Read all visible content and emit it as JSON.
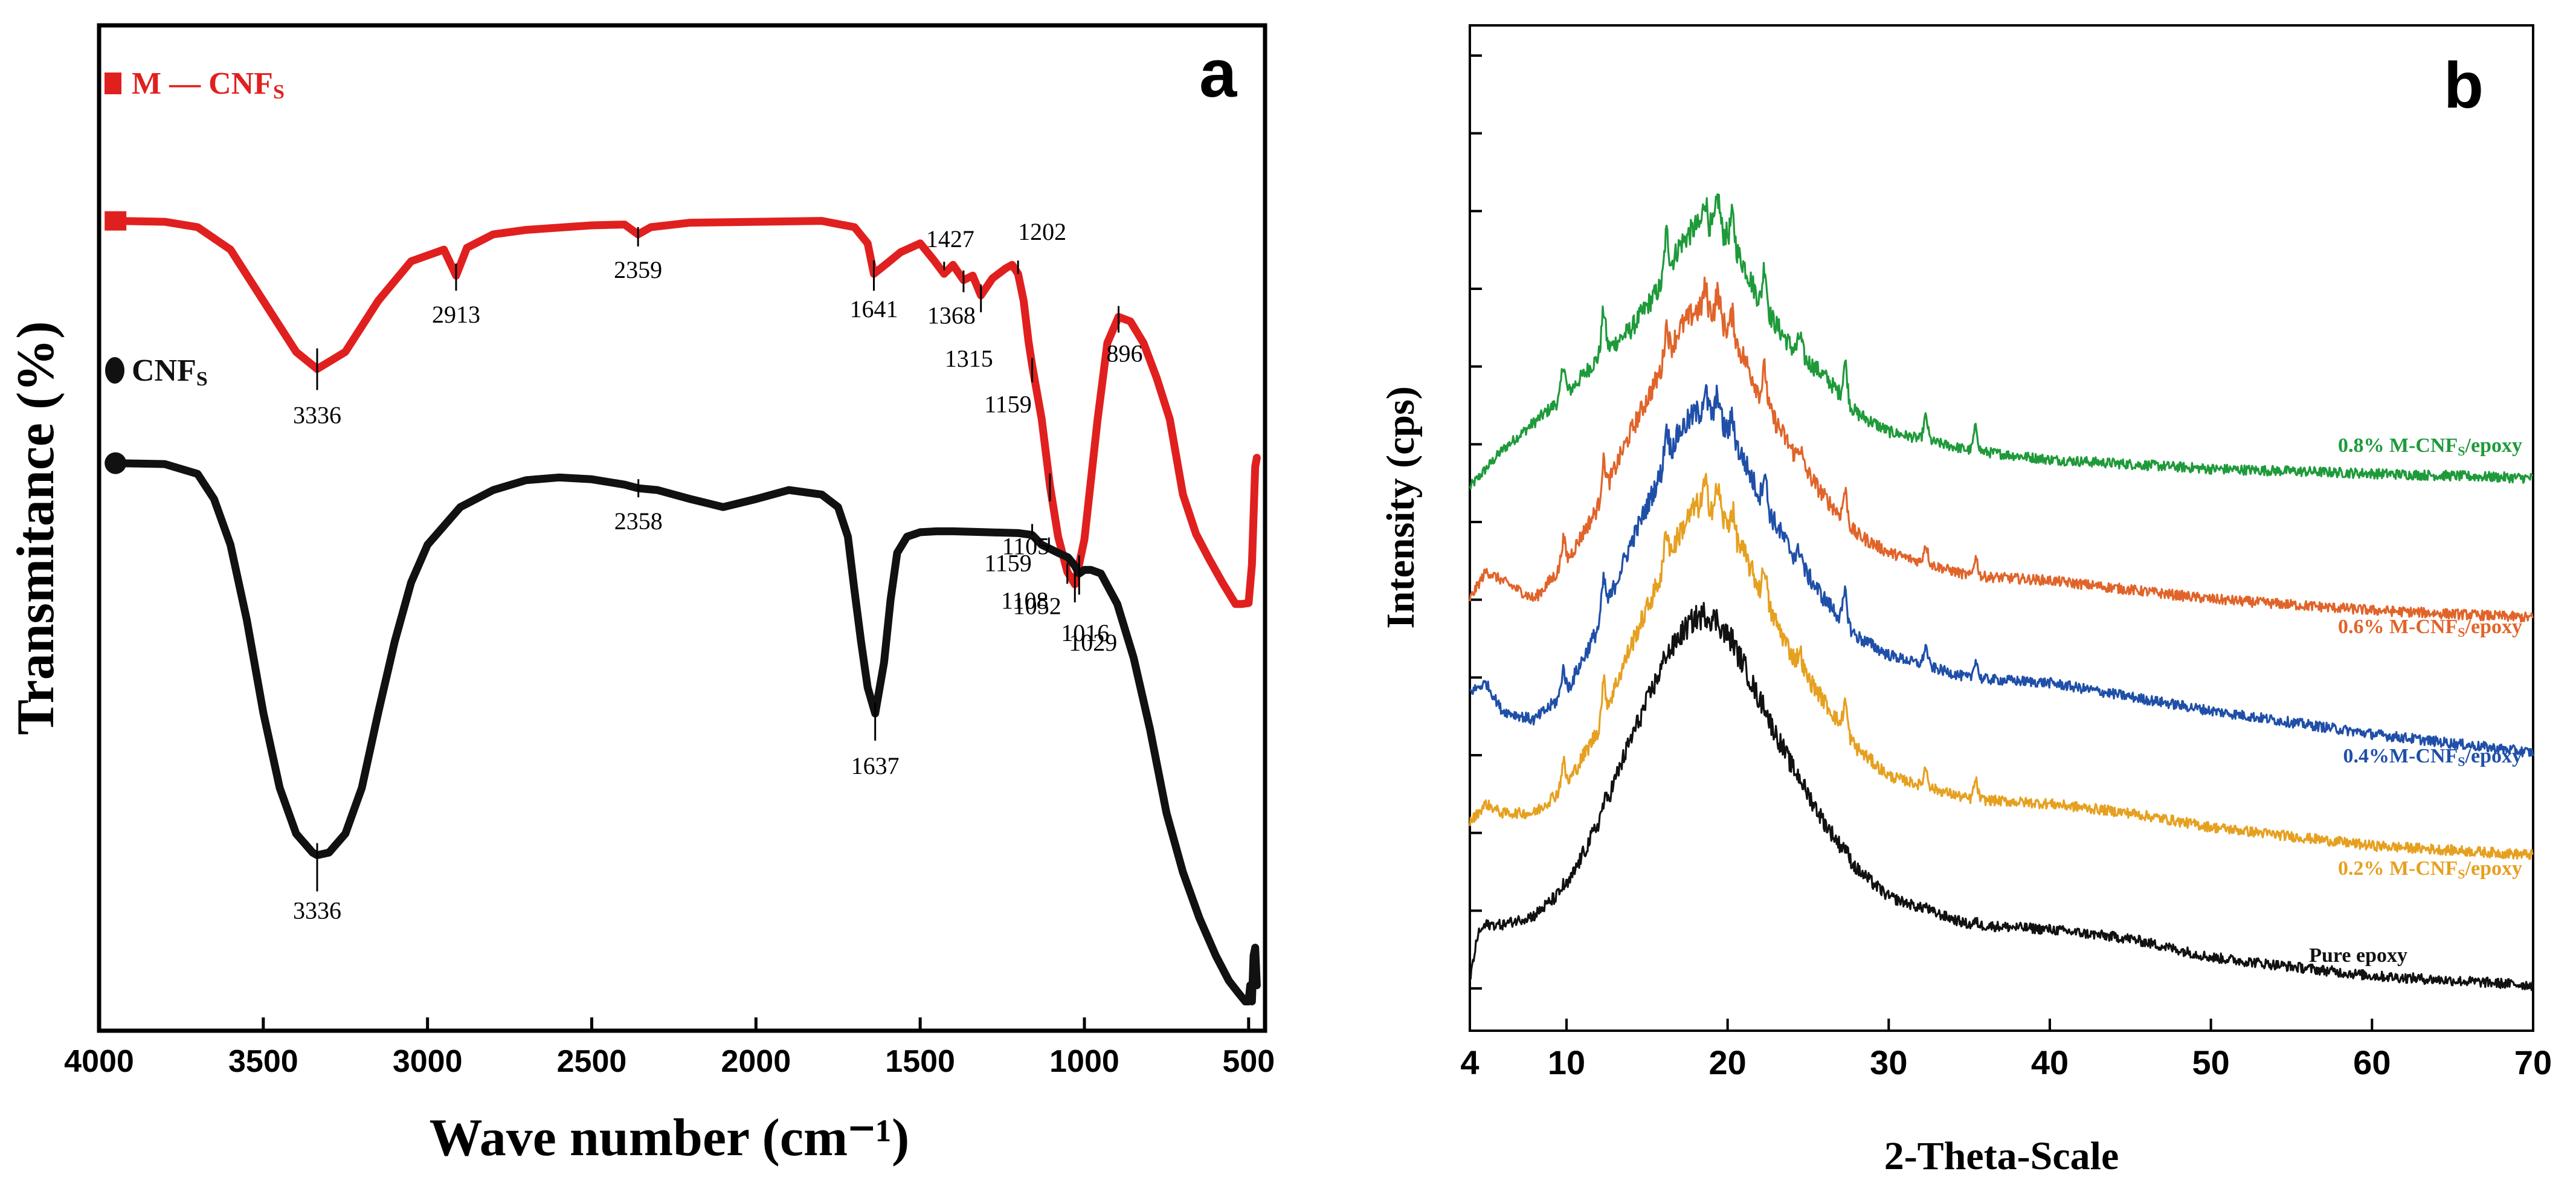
{
  "chart_data": [
    {
      "panel": "a",
      "type": "line",
      "title": "",
      "xlabel": "Wave number (cm⁻¹)",
      "ylabel": "Transmitance (%)",
      "xlim": [
        4000,
        450
      ],
      "x_reversed": true,
      "xticks": [
        4000,
        3500,
        3000,
        2500,
        2000,
        1500,
        1000,
        500
      ],
      "ylim": [
        0,
        100
      ],
      "yticks": false,
      "legend_position": "top-left",
      "series": [
        {
          "name": "M—CNFs",
          "legend_label": "M — CNF",
          "legend_sub": "S",
          "color": "#e0201f",
          "marker": "square",
          "x": [
            3950,
            3800,
            3700,
            3600,
            3500,
            3400,
            3336,
            3250,
            3150,
            3050,
            2950,
            2913,
            2880,
            2800,
            2700,
            2500,
            2400,
            2359,
            2320,
            2200,
            2000,
            1800,
            1700,
            1660,
            1641,
            1600,
            1560,
            1500,
            1460,
            1427,
            1400,
            1368,
            1340,
            1315,
            1280,
            1240,
            1220,
            1202,
            1185,
            1170,
            1159,
            1130,
            1105,
            1080,
            1052,
            1029,
            1000,
            960,
            930,
            896,
            860,
            820,
            780,
            740,
            700,
            660,
            620,
            580,
            540,
            520,
            500,
            490,
            480,
            475
          ],
          "y": [
            87.5,
            87.4,
            86.8,
            84.3,
            78.6,
            72.9,
            71.0,
            72.9,
            78.6,
            83.0,
            84.3,
            81.4,
            84.5,
            86.0,
            86.5,
            87.0,
            87.1,
            86.0,
            86.8,
            87.3,
            87.4,
            87.5,
            86.8,
            85.0,
            81.6,
            82.8,
            84.0,
            85.0,
            83.2,
            81.6,
            82.6,
            80.9,
            81.4,
            79.2,
            81.1,
            82.2,
            82.6,
            81.6,
            78.6,
            74.0,
            71.4,
            65.4,
            58.0,
            52.3,
            48.4,
            47.0,
            52.0,
            65.3,
            73.9,
            76.8,
            76.3,
            73.9,
            70.0,
            65.4,
            57.0,
            52.6,
            49.8,
            47.2,
            44.8,
            44.8,
            44.9,
            49.2,
            60.1,
            61.1
          ]
        },
        {
          "name": "CNFs",
          "legend_label": "CNF",
          "legend_sub": "S",
          "color": "#111111",
          "marker": "circle",
          "x": [
            3950,
            3800,
            3700,
            3650,
            3600,
            3550,
            3500,
            3450,
            3400,
            3350,
            3336,
            3300,
            3250,
            3200,
            3150,
            3100,
            3050,
            3000,
            2900,
            2800,
            2700,
            2600,
            2500,
            2400,
            2358,
            2300,
            2200,
            2100,
            2000,
            1900,
            1800,
            1750,
            1720,
            1700,
            1680,
            1660,
            1637,
            1610,
            1590,
            1570,
            1540,
            1500,
            1450,
            1400,
            1300,
            1200,
            1159,
            1130,
            1108,
            1080,
            1050,
            1030,
            1016,
            1000,
            980,
            950,
            900,
            850,
            800,
            750,
            700,
            650,
            600,
            560,
            530,
            510,
            500,
            495,
            490,
            485,
            480,
            475
          ],
          "y": [
            60.5,
            60.4,
            59.3,
            56.5,
            51.4,
            43.0,
            32.7,
            24.3,
            19.2,
            17.1,
            16.8,
            17.1,
            19.2,
            24.3,
            32.7,
            40.6,
            47.2,
            51.4,
            55.6,
            57.5,
            58.6,
            58.9,
            58.7,
            58.1,
            57.7,
            57.5,
            56.5,
            55.6,
            56.5,
            57.5,
            57.0,
            55.6,
            52.3,
            46.3,
            40.6,
            35.5,
            32.6,
            38.3,
            45.3,
            50.5,
            52.3,
            52.8,
            52.9,
            52.9,
            52.8,
            52.7,
            52.5,
            51.4,
            51.0,
            50.5,
            50.0,
            49.1,
            48.2,
            48.6,
            48.6,
            48.2,
            44.8,
            38.8,
            30.8,
            21.5,
            14.9,
            9.8,
            5.6,
            2.8,
            1.4,
            0.5,
            0.5,
            2.3,
            0.5,
            5.6,
            6.5,
            2.3
          ]
        }
      ],
      "annotations": [
        {
          "series": "M—CNFs",
          "label": "3336",
          "x": 3336
        },
        {
          "series": "M—CNFs",
          "label": "2913",
          "x": 2913
        },
        {
          "series": "M—CNFs",
          "label": "2359",
          "x": 2359
        },
        {
          "series": "M—CNFs",
          "label": "1641",
          "x": 1641
        },
        {
          "series": "M—CNFs",
          "label": "1427",
          "x": 1427
        },
        {
          "series": "M—CNFs",
          "label": "1368",
          "x": 1368
        },
        {
          "series": "M—CNFs",
          "label": "1315",
          "x": 1315
        },
        {
          "series": "M—CNFs",
          "label": "1202",
          "x": 1202
        },
        {
          "series": "M—CNFs",
          "label": "1159",
          "x": 1159
        },
        {
          "series": "M—CNFs",
          "label": "1105",
          "x": 1105
        },
        {
          "series": "M—CNFs",
          "label": "1052",
          "x": 1052
        },
        {
          "series": "M—CNFs",
          "label": "1029",
          "x": 1029
        },
        {
          "series": "M—CNFs",
          "label": "896",
          "x": 896
        },
        {
          "series": "CNFs",
          "label": "3336",
          "x": 3336
        },
        {
          "series": "CNFs",
          "label": "2358",
          "x": 2358
        },
        {
          "series": "CNFs",
          "label": "1637",
          "x": 1637
        },
        {
          "series": "CNFs",
          "label": "1159",
          "x": 1159
        },
        {
          "series": "CNFs",
          "label": "1108",
          "x": 1108
        },
        {
          "series": "CNFs",
          "label": "1016",
          "x": 1016
        }
      ]
    },
    {
      "panel": "b",
      "type": "line",
      "title": "",
      "xlabel": "2-Theta-Scale",
      "ylabel": "Intensity (cps)",
      "xlim": [
        4,
        70
      ],
      "xticks": [
        4,
        10,
        20,
        30,
        40,
        50,
        60,
        70
      ],
      "ylim": [
        0,
        100
      ],
      "yticks": false,
      "noise": true,
      "series": [
        {
          "name": "0.8% M-CNFs/epoxy",
          "label_text": "0.8% M-CNF",
          "label_sub": "S",
          "label_suffix": "/epoxy",
          "color": "#1e9a3a",
          "x": [
            4,
            6,
            8,
            10,
            12,
            14,
            16,
            17,
            18,
            19,
            20,
            21,
            22,
            24,
            26,
            28,
            30,
            35,
            40,
            45,
            50,
            60,
            70
          ],
          "y": [
            58,
            62,
            65,
            68,
            72,
            75,
            80,
            84,
            86,
            86,
            85,
            82,
            78,
            73,
            70,
            66,
            64,
            62,
            61,
            60.5,
            60,
            59.5,
            59
          ]
        },
        {
          "name": "0.6% M-CNFs/epoxy",
          "label_text": "0.6% M-CNF",
          "label_sub": "S",
          "label_suffix": "/epoxy",
          "color": "#e0642a",
          "x": [
            4,
            5,
            6,
            8,
            10,
            12,
            14,
            16,
            17,
            18,
            19,
            20,
            21,
            22,
            24,
            26,
            28,
            30,
            35,
            40,
            45,
            50,
            60,
            70
          ],
          "y": [
            46,
            49,
            48,
            46,
            50,
            56,
            64,
            71,
            75,
            77,
            77,
            75,
            72,
            68,
            62,
            57,
            53,
            51,
            48.5,
            48,
            47,
            46,
            44.8,
            44
          ]
        },
        {
          "name": "0.4%M-CNFs/epoxy",
          "label_text": "0.4%M-CNF",
          "label_sub": "S",
          "label_suffix": "/epoxy",
          "color": "#1f4fa8",
          "x": [
            4,
            5,
            6,
            8,
            10,
            12,
            14,
            16,
            17,
            18,
            19,
            20,
            21,
            22,
            24,
            26,
            28,
            30,
            35,
            40,
            45,
            50,
            60,
            70
          ],
          "y": [
            36,
            37,
            34,
            33,
            36,
            43,
            52,
            60,
            64,
            66,
            66,
            64,
            61,
            57,
            51,
            46,
            42,
            40,
            37.5,
            37,
            35.5,
            34,
            31.5,
            29.5
          ]
        },
        {
          "name": "0.2% M-CNFs/epoxy",
          "label_text": "0.2% M-CNF",
          "label_sub": "S",
          "label_suffix": "/epoxy",
          "color": "#e6a020",
          "x": [
            4,
            5,
            6,
            8,
            10,
            12,
            14,
            16,
            17,
            18,
            19,
            20,
            21,
            22,
            24,
            26,
            28,
            30,
            35,
            40,
            45,
            50,
            60,
            70
          ],
          "y": [
            22,
            24,
            23,
            23,
            26,
            32,
            41,
            49,
            53,
            56,
            56,
            54,
            51,
            47,
            40,
            35,
            30,
            27,
            24.5,
            24,
            23,
            21.5,
            19.5,
            18.5
          ]
        },
        {
          "name": "Pure epoxy",
          "label_text": "Pure epoxy",
          "label_sub": "",
          "label_suffix": "",
          "color": "#111111",
          "x": [
            4,
            4.5,
            5,
            6,
            8,
            10,
            12,
            14,
            16,
            17,
            18,
            19,
            20,
            21,
            22,
            24,
            26,
            28,
            30,
            35,
            40,
            45,
            50,
            60,
            70
          ],
          "y": [
            5,
            10,
            11,
            11,
            12,
            15,
            22,
            31,
            39,
            42,
            44,
            44,
            42,
            39,
            35,
            28,
            22,
            17,
            14,
            11,
            10.5,
            9.5,
            7.5,
            5.5,
            4.5
          ]
        }
      ],
      "peaks": [
        {
          "x": 9.8,
          "h": 3.5
        },
        {
          "x": 12.3,
          "h": 4.5
        },
        {
          "x": 16.2,
          "h": 4.5
        },
        {
          "x": 18.6,
          "h": 3.0
        },
        {
          "x": 19.4,
          "h": 3.5
        },
        {
          "x": 20.3,
          "h": 3.0
        },
        {
          "x": 22.3,
          "h": 4.5
        },
        {
          "x": 24.5,
          "h": 2.0
        },
        {
          "x": 27.3,
          "h": 4.0
        },
        {
          "x": 32.3,
          "h": 2.5
        },
        {
          "x": 35.4,
          "h": 2.5
        }
      ]
    }
  ],
  "panel_labels": {
    "a": "a",
    "b": "b"
  }
}
